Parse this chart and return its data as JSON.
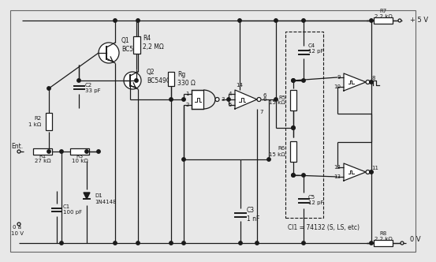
{
  "bg_color": "#e8e8e8",
  "line_color": "#1a1a1a",
  "lw": 0.9,
  "components": {
    "Q1_label": "Q1\nBC547",
    "Q2_label": "Q2\nBC549C",
    "R1_label": "R1\n27 kΩ",
    "R2_label": "R2\n1 kΩ",
    "R3_label": "R3\n10 kΩ",
    "R4_label": "R4\n2,2 MΩ",
    "R5_label": "R5\n15 kΩ",
    "R6_label": "R6\n15 kΩ",
    "R7_label": "R7\n2,2 kΩ",
    "R8_label": "R8\n2,2 kΩ",
    "Rg_label": "Rg\n330 Ω",
    "C1_label": "C1\n100 pF",
    "C2_label": "C2\n33 pF",
    "C3_label": "C3\n1 nF",
    "C4_label": "C4\n12 pF",
    "C5_label": "C5\n12 pF",
    "D1_label": "D1\n1N4148",
    "Vcc_label": "+ 5 V",
    "Gnd_label": "0 V",
    "Ent_label": "Ent.",
    "Vin_label": "0 a\n10 V",
    "CI_label": "CI1 = 74132 (S, LS, etc)"
  }
}
